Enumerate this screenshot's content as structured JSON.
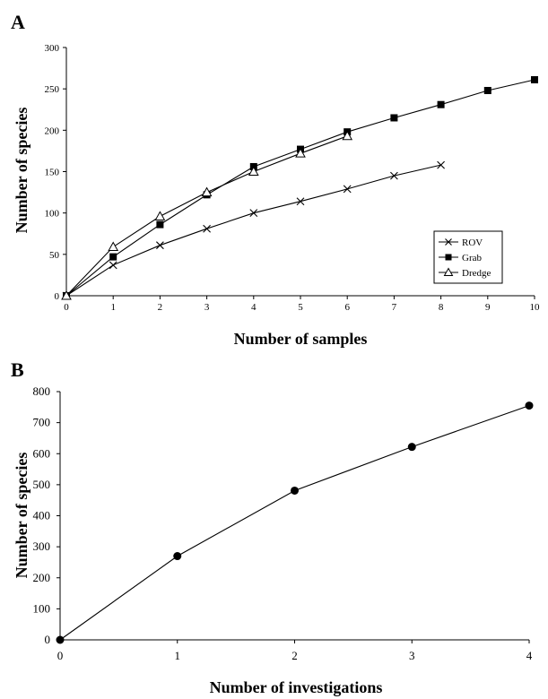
{
  "chart_data": [
    {
      "type": "line",
      "panel_label": "A",
      "xlabel": "Number of samples",
      "ylabel": "Number of species",
      "xlim": [
        0,
        10
      ],
      "ylim": [
        0,
        300
      ],
      "xticks": [
        0,
        1,
        2,
        3,
        4,
        5,
        6,
        7,
        8,
        9,
        10
      ],
      "yticks": [
        0,
        50,
        100,
        150,
        200,
        250,
        300
      ],
      "grid": false,
      "legend_position": "bottom-right",
      "series": [
        {
          "name": "ROV",
          "marker": "x",
          "x": [
            0,
            1,
            2,
            3,
            4,
            5,
            6,
            7,
            8
          ],
          "values": [
            0,
            37,
            61,
            81,
            100,
            114,
            129,
            145,
            158
          ]
        },
        {
          "name": "Grab",
          "marker": "filled-square",
          "x": [
            0,
            1,
            2,
            3,
            4,
            5,
            6,
            7,
            8,
            9,
            10
          ],
          "values": [
            0,
            47,
            86,
            122,
            156,
            177,
            198,
            215,
            231,
            248,
            261
          ]
        },
        {
          "name": "Dredge",
          "marker": "open-triangle",
          "x": [
            0,
            1,
            2,
            3,
            4,
            5,
            6
          ],
          "values": [
            0,
            59,
            96,
            125,
            150,
            172,
            193
          ]
        }
      ]
    },
    {
      "type": "line",
      "panel_label": "B",
      "xlabel": "Number of investigations",
      "ylabel": "Number of species",
      "xlim": [
        0,
        4
      ],
      "ylim": [
        0,
        800
      ],
      "xticks": [
        0,
        1,
        2,
        3,
        4
      ],
      "yticks": [
        0,
        100,
        200,
        300,
        400,
        500,
        600,
        700,
        800
      ],
      "grid": false,
      "series": [
        {
          "marker": "filled-circle",
          "x": [
            0,
            1,
            2,
            3,
            4
          ],
          "values": [
            0,
            270,
            481,
            622,
            755
          ]
        }
      ]
    }
  ]
}
